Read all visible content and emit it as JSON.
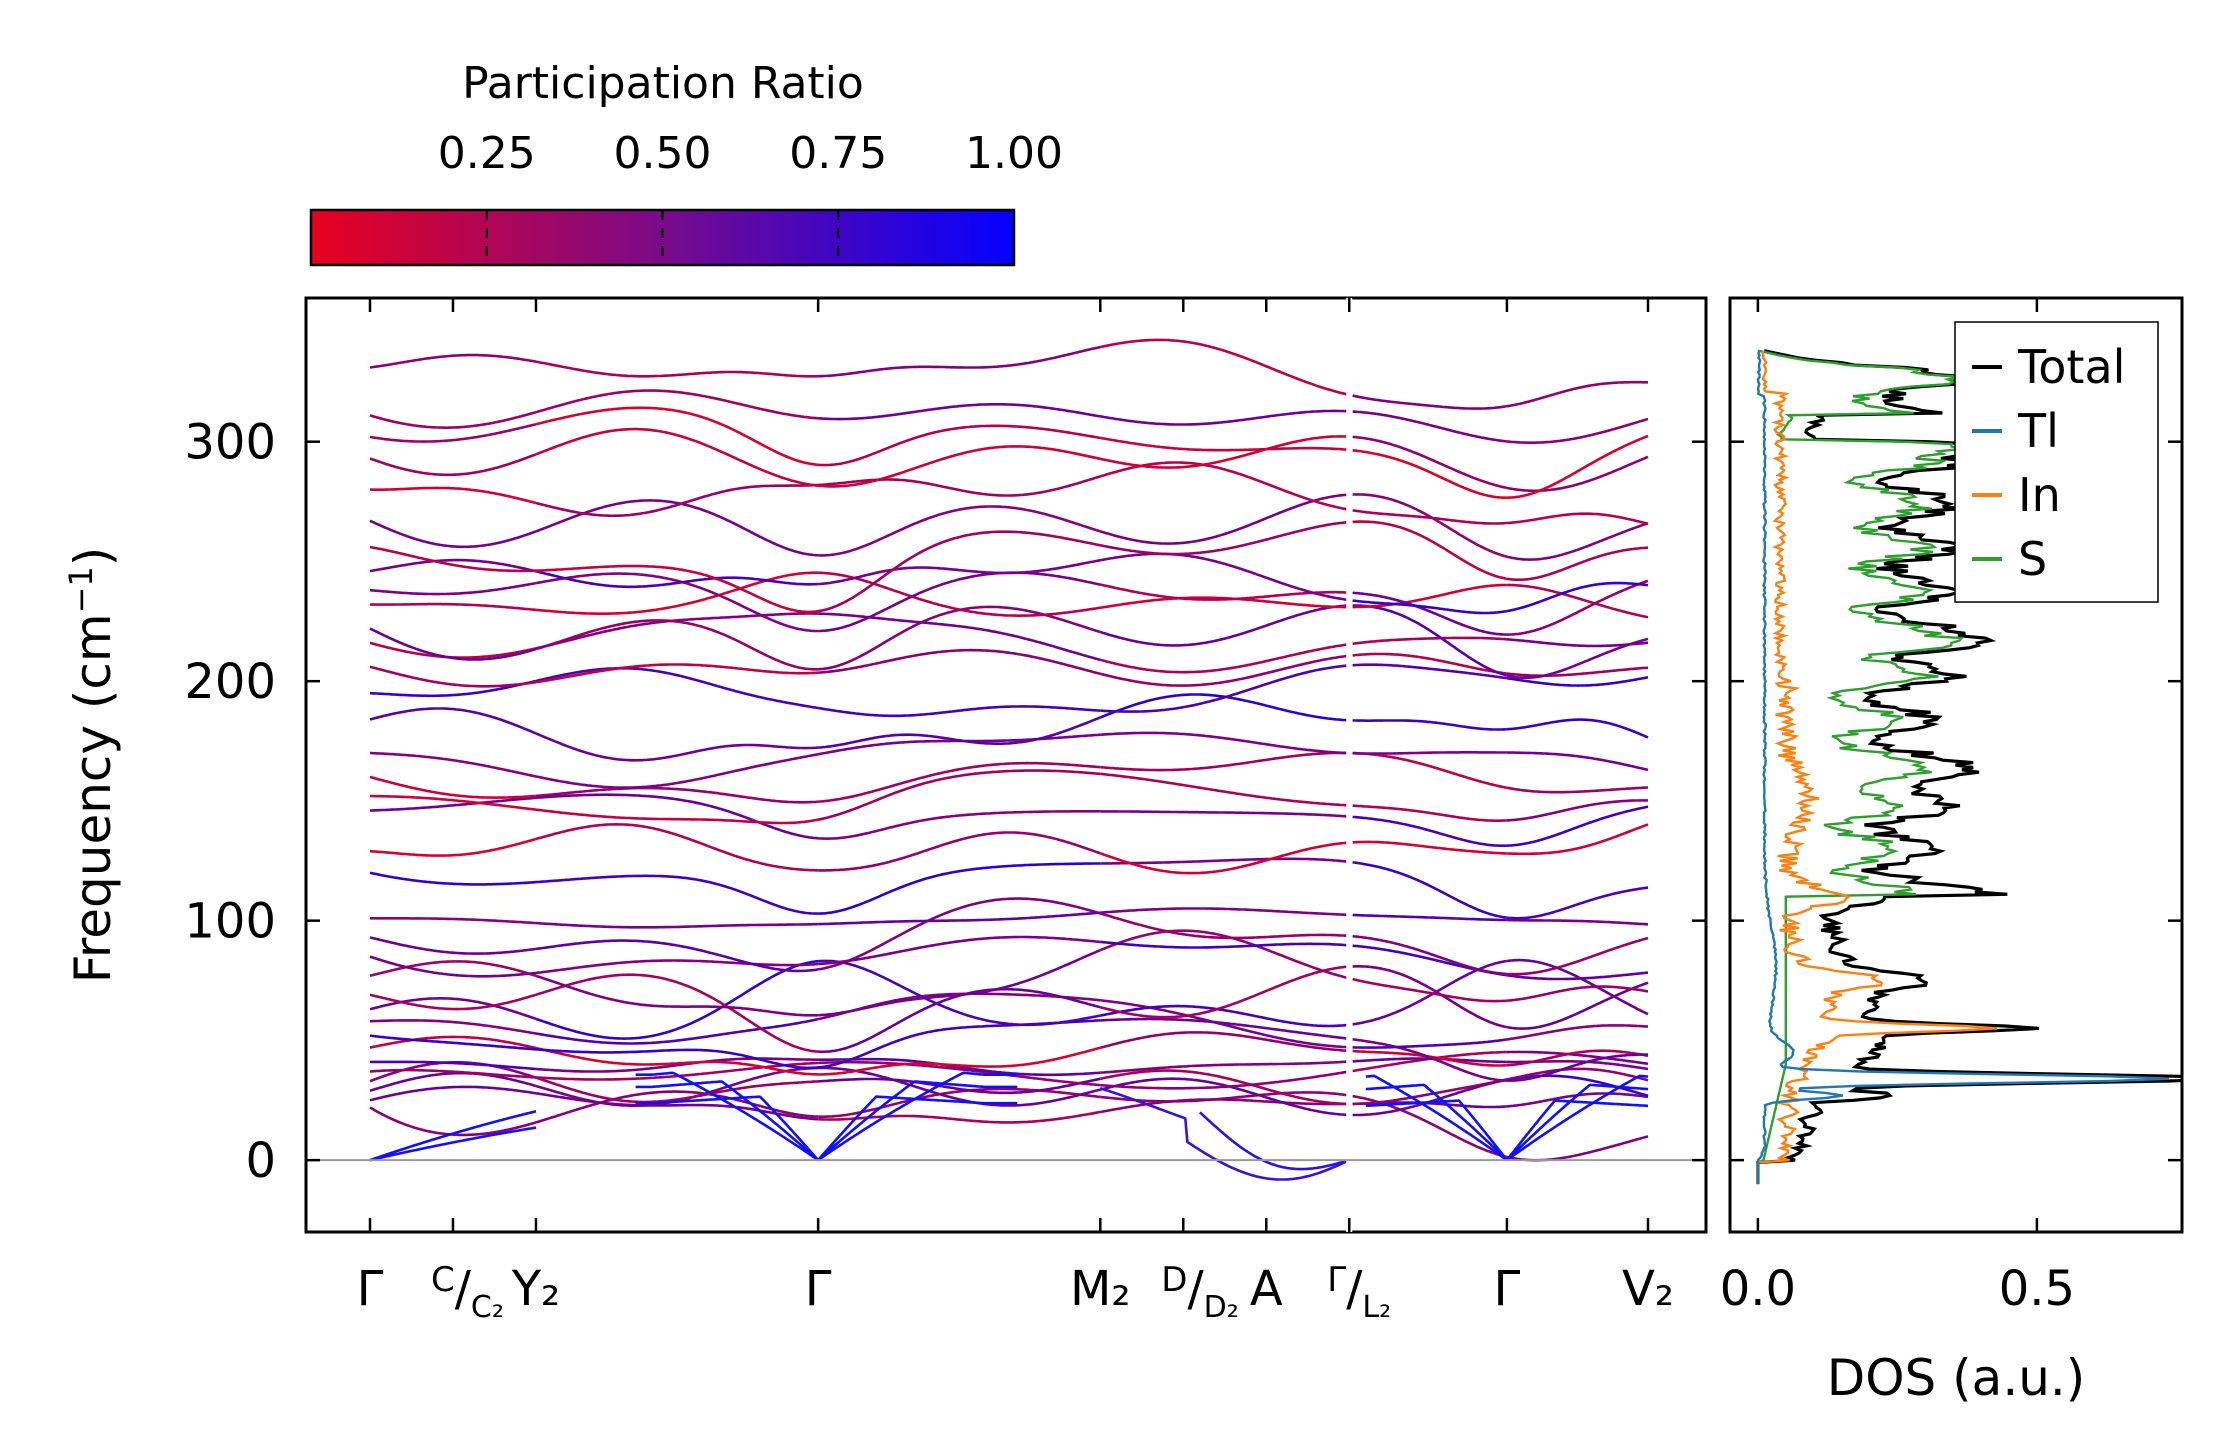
{
  "chart_data": {
    "type": "line",
    "colorbar": {
      "title": "Participation Ratio",
      "ticks": [
        "0.25",
        "0.50",
        "0.75",
        "1.00"
      ],
      "range": [
        0.0,
        1.0
      ],
      "colors": [
        "#e8001e",
        "#0400ff"
      ]
    },
    "band_structure": {
      "ylabel": "Frequency (cm",
      "ylabel_sup": "−1",
      "ylabel_close": ")",
      "ylim": [
        -30,
        360
      ],
      "yticks": [
        "0",
        "100",
        "200",
        "300"
      ],
      "kpoints": [
        {
          "label": "Γ",
          "pos": 0.0
        },
        {
          "label": "C",
          "sub": "C₂",
          "pos": 0.5
        },
        {
          "label": "Y₂",
          "pos": 1.0
        },
        {
          "label": "Γ",
          "pos": 2.7
        },
        {
          "label": "M₂",
          "pos": 4.4
        },
        {
          "label": "D",
          "sub": "D₂",
          "pos": 4.9
        },
        {
          "label": "A",
          "pos": 5.4
        },
        {
          "label": "Γ",
          "sub": "L₂",
          "pos": 5.9
        },
        {
          "label": "Γ",
          "pos": 6.85
        },
        {
          "label": "V₂",
          "pos": 7.7
        }
      ],
      "segment_break": 5.9,
      "acoustic_color": "#1010ff",
      "band_start_freqs": [
        22,
        25,
        29,
        33,
        37,
        41,
        47,
        52,
        58,
        63,
        69,
        77,
        85,
        93,
        101,
        120,
        129,
        146,
        152,
        160,
        170,
        184,
        195,
        206,
        216,
        222,
        232,
        238,
        246,
        256,
        267,
        280,
        293,
        302,
        311,
        331
      ]
    },
    "dos": {
      "xlabel": "DOS (a.u.)",
      "xticks": [
        "0.0",
        "0.5"
      ],
      "xlim": [
        -0.05,
        0.76
      ],
      "ylim": [
        -30,
        360
      ],
      "series": [
        {
          "name": "Total",
          "color": "#000000"
        },
        {
          "name": "Tl",
          "color": "#1f77b4"
        },
        {
          "name": "In",
          "color": "#ff7f0e"
        },
        {
          "name": "S",
          "color": "#2ca02c"
        }
      ]
    }
  }
}
